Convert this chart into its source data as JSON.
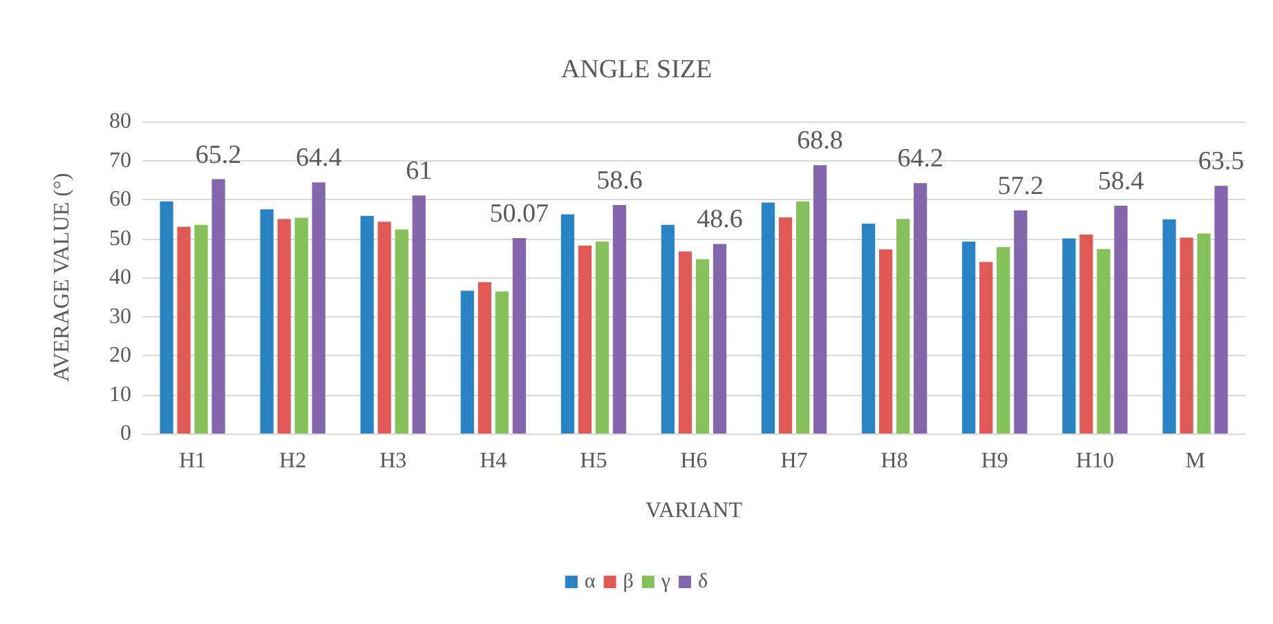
{
  "chart_data": {
    "type": "bar",
    "title": "ANGLE SIZE",
    "xlabel": "VARIANT",
    "ylabel": "AVERAGE VALUE (°)",
    "categories": [
      "H1",
      "H2",
      "H3",
      "H4",
      "H5",
      "H6",
      "H7",
      "H8",
      "H9",
      "H10",
      "M"
    ],
    "series": [
      {
        "name": "α",
        "color": "#2a82c2",
        "values": [
          59.5,
          57.5,
          55.8,
          36.6,
          56.2,
          53.5,
          59.2,
          53.8,
          49.2,
          50,
          54.9
        ]
      },
      {
        "name": "β",
        "color": "#e05a55",
        "values": [
          53,
          55,
          54.3,
          38.8,
          48.2,
          46.7,
          55.4,
          47.2,
          44,
          51,
          50.2
        ]
      },
      {
        "name": "γ",
        "color": "#86c05a",
        "values": [
          53.5,
          55.3,
          52.3,
          36.4,
          49.2,
          44.7,
          59.5,
          55,
          47.8,
          47.3,
          51.3
        ]
      },
      {
        "name": "δ",
        "color": "#8466ab",
        "values": [
          65.2,
          64.4,
          61,
          50.07,
          58.6,
          48.6,
          68.8,
          64.2,
          57.2,
          58.4,
          63.5
        ],
        "value_labels": [
          "65.2",
          "64.4",
          "61",
          "50.07",
          "58.6",
          "48.6",
          "68.8",
          "64.2",
          "57.2",
          "58.4",
          "63.5"
        ]
      }
    ],
    "ylim": [
      0,
      80
    ],
    "yticks": [
      0,
      10,
      20,
      30,
      40,
      50,
      60,
      70,
      80
    ],
    "grid": "y",
    "legend": "bottom"
  }
}
